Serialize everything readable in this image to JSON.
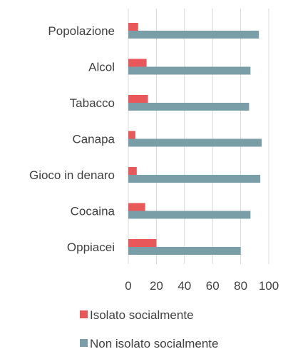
{
  "chart_data": {
    "type": "bar",
    "orientation": "horizontal",
    "categories": [
      "Popolazione",
      "Alcol",
      "Tabacco",
      "Canapa",
      "Gioco in denaro",
      "Cocaina",
      "Oppiacei"
    ],
    "series": [
      {
        "name": "Isolato socialmente",
        "values": [
          7,
          13,
          14,
          5,
          6,
          12,
          20
        ]
      },
      {
        "name": "Non isolato socialmente",
        "values": [
          93,
          87,
          86,
          95,
          94,
          87,
          80
        ]
      }
    ],
    "xlim": [
      0,
      100
    ],
    "xticks": [
      "0",
      "20",
      "40",
      "60",
      "80",
      "100"
    ],
    "grid": "vertical",
    "legend_position": "bottom",
    "colors": {
      "Isolato socialmente": "#E8585A",
      "Non isolato socialmente": "#7A9EA8",
      "grid": "#D9D9D9"
    }
  }
}
